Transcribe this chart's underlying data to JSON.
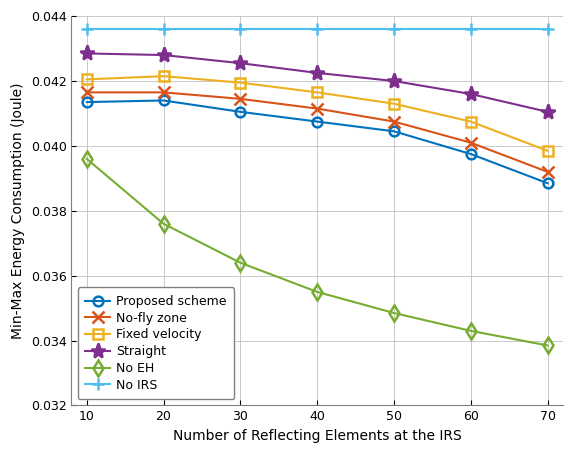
{
  "x": [
    10,
    20,
    30,
    40,
    50,
    60,
    70
  ],
  "proposed": [
    0.04135,
    0.0414,
    0.04105,
    0.04075,
    0.04045,
    0.03975,
    0.03885
  ],
  "no_fly": [
    0.04165,
    0.04165,
    0.04145,
    0.04115,
    0.04075,
    0.0401,
    0.0392
  ],
  "fixed_vel": [
    0.04205,
    0.04215,
    0.04195,
    0.04165,
    0.0413,
    0.04075,
    0.03985
  ],
  "straight": [
    0.04285,
    0.0428,
    0.04255,
    0.04225,
    0.042,
    0.0416,
    0.04105
  ],
  "no_eh": [
    0.0396,
    0.0376,
    0.0364,
    0.0355,
    0.03485,
    0.0343,
    0.03385
  ],
  "no_irs": [
    0.0436,
    0.0436,
    0.0436,
    0.0436,
    0.0436,
    0.0436,
    0.0436
  ],
  "colors": {
    "proposed": "#0072BD",
    "no_fly": "#D95319",
    "fixed_vel": "#EDB120",
    "straight": "#7E2F8E",
    "no_eh": "#77AC30",
    "no_irs": "#4DBEEE"
  },
  "markers": {
    "proposed": "o",
    "no_fly": "x",
    "fixed_vel": "s",
    "straight": "*",
    "no_eh": "d",
    "no_irs": "+"
  },
  "labels": {
    "proposed": "Proposed scheme",
    "no_fly": "No-fly zone",
    "fixed_vel": "Fixed velocity",
    "straight": "Straight",
    "no_eh": "No EH",
    "no_irs": "No IRS"
  },
  "xlabel": "Number of Reflecting Elements at the IRS",
  "ylabel": "Min-Max Energy Consumption (Joule)",
  "ylim": [
    0.032,
    0.044
  ],
  "yticks": [
    0.032,
    0.034,
    0.036,
    0.038,
    0.04,
    0.042,
    0.044
  ],
  "xticks": [
    10,
    20,
    30,
    40,
    50,
    60,
    70
  ],
  "grid": true
}
